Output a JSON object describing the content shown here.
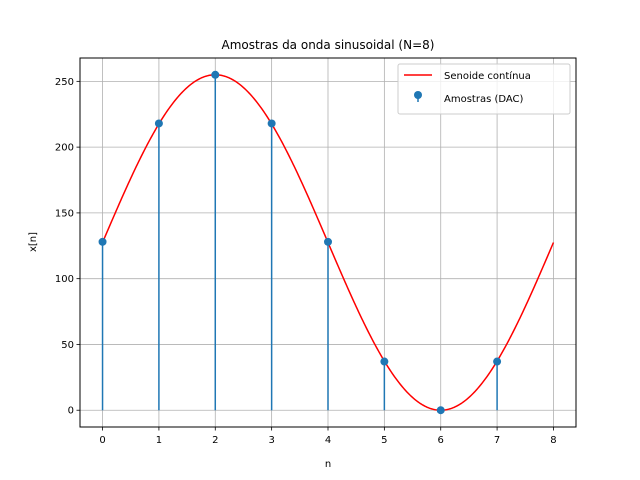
{
  "chart_data": {
    "type": "line",
    "title": "Amostras da onda sinusoidal (N=8)",
    "xlabel": "n",
    "ylabel": "x[n]",
    "xlim": [
      -0.4,
      8.4
    ],
    "ylim": [
      -12.75,
      267.75
    ],
    "x_ticks": [
      "0",
      "1",
      "2",
      "3",
      "4",
      "5",
      "6",
      "7",
      "8"
    ],
    "y_ticks": [
      "0",
      "50",
      "100",
      "150",
      "200",
      "250"
    ],
    "grid": true,
    "legend_position": "top-right",
    "series": [
      {
        "name": "Senoide contínua",
        "kind": "line",
        "color": "#ff0000",
        "formula": "127.5 + 127.5*sin(2*pi*n/8)",
        "x_range": [
          0,
          8
        ]
      },
      {
        "name": "Amostras (DAC)",
        "kind": "stem",
        "color": "#1f77b4",
        "x": [
          0,
          1,
          2,
          3,
          4,
          5,
          6,
          7
        ],
        "y": [
          128,
          218,
          255,
          218,
          128,
          37,
          0,
          37
        ]
      }
    ]
  }
}
